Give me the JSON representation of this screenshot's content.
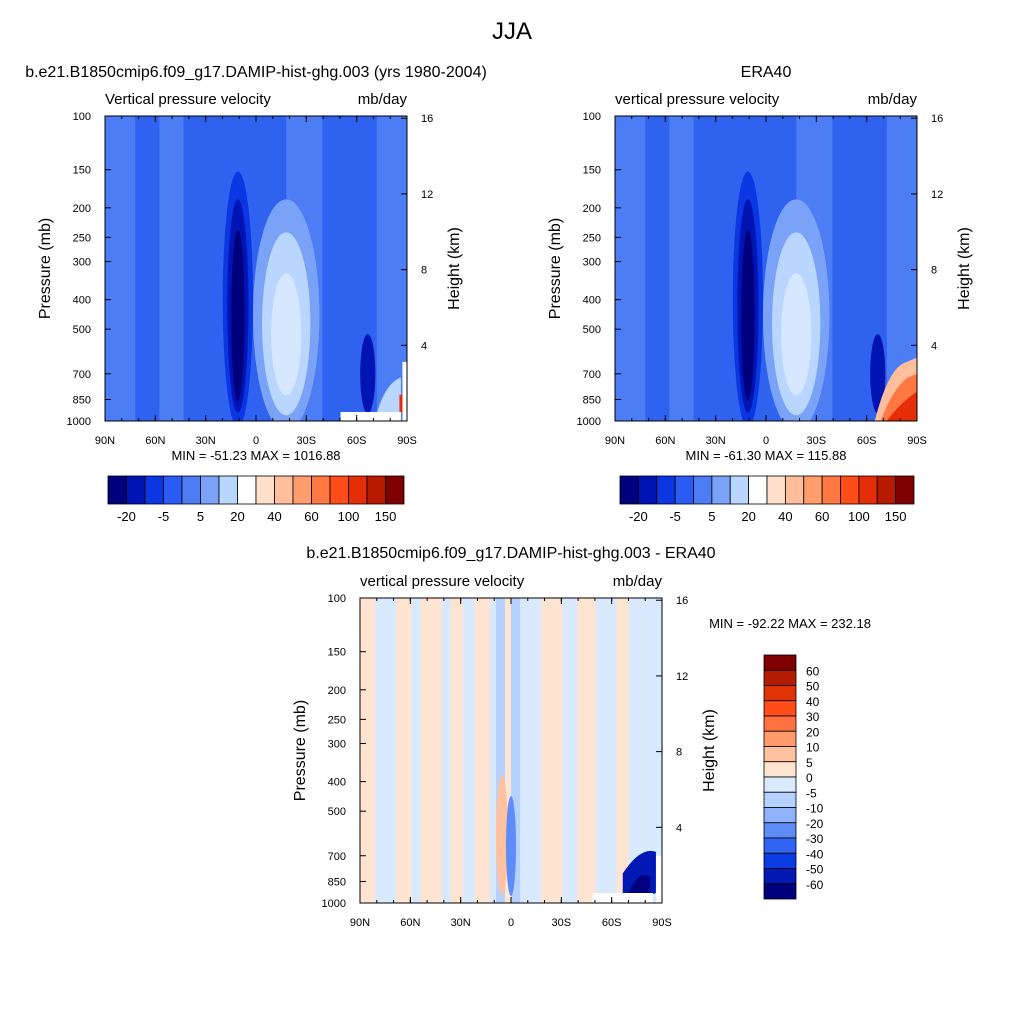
{
  "page_title": "JJA",
  "colors": {
    "background": "#ffffff",
    "blue_dark": "#00007f",
    "blue_mid": "#1c4fff",
    "blue_light": "#b9d6ff",
    "red_light": "#ffe0cc",
    "red_dark": "#7f0000"
  },
  "chart_data": [
    {
      "type": "heatmap",
      "variable": "vertical pressure velocity",
      "title": "b.e21.B1850cmip6.f09_g17.DAMIP-hist-ghg.003 (yrs 1980-2004)",
      "subtitle_left": "Vertical pressure velocity",
      "subtitle_right": "mb/day",
      "xlabel": "",
      "ylabel": "Pressure (mb)",
      "y2label": "Height (km)",
      "xticks": [
        "90N",
        "60N",
        "30N",
        "0",
        "30S",
        "60S",
        "90S"
      ],
      "yticks": [
        "100",
        "150",
        "200",
        "250",
        "300",
        "400",
        "500",
        "700",
        "850",
        "1000"
      ],
      "y2ticks": [
        "16",
        "12",
        "8",
        "4"
      ],
      "xlim": [
        "90N",
        "90S"
      ],
      "ylim": [
        1000,
        100
      ],
      "y_scale": "log",
      "stats": "MIN = -51.23  MAX = 1016.88",
      "colorbar": {
        "orientation": "horizontal",
        "labels": [
          "-20",
          "-5",
          "5",
          "20",
          "40",
          "60",
          "100",
          "150"
        ],
        "colors": [
          "#00007f",
          "#0014b4",
          "#0a36e3",
          "#2a5bf5",
          "#4c7df5",
          "#7aa3f7",
          "#b9d6ff",
          "#ffffff",
          "#ffe0cc",
          "#ffbe9c",
          "#ff9d6c",
          "#ff7743",
          "#ff4d1a",
          "#e52d08",
          "#b81a00",
          "#7f0000"
        ]
      }
    },
    {
      "type": "heatmap",
      "variable": "vertical pressure velocity",
      "title": "ERA40",
      "subtitle_left": "vertical pressure velocity",
      "subtitle_right": "mb/day",
      "xlabel": "",
      "ylabel": "Pressure (mb)",
      "y2label": "Height (km)",
      "xticks": [
        "90N",
        "60N",
        "30N",
        "0",
        "30S",
        "60S",
        "90S"
      ],
      "yticks": [
        "100",
        "150",
        "200",
        "250",
        "300",
        "400",
        "500",
        "700",
        "850",
        "1000"
      ],
      "y2ticks": [
        "16",
        "12",
        "8",
        "4"
      ],
      "xlim": [
        "90N",
        "90S"
      ],
      "ylim": [
        1000,
        100
      ],
      "y_scale": "log",
      "stats": "MIN = -61.30  MAX = 115.88",
      "colorbar": {
        "orientation": "horizontal",
        "labels": [
          "-20",
          "-5",
          "5",
          "20",
          "40",
          "60",
          "100",
          "150"
        ],
        "colors": [
          "#00007f",
          "#0014b4",
          "#0a36e3",
          "#2a5bf5",
          "#4c7df5",
          "#7aa3f7",
          "#b9d6ff",
          "#ffffff",
          "#ffe0cc",
          "#ffbe9c",
          "#ff9d6c",
          "#ff7743",
          "#ff4d1a",
          "#e52d08",
          "#b81a00",
          "#7f0000"
        ]
      }
    },
    {
      "type": "heatmap",
      "variable": "vertical pressure velocity",
      "title": "b.e21.B1850cmip6.f09_g17.DAMIP-hist-ghg.003 - ERA40",
      "subtitle_left": "vertical pressure velocity",
      "subtitle_right": "mb/day",
      "xlabel": "",
      "ylabel": "Pressure (mb)",
      "y2label": "Height (km)",
      "xticks": [
        "90N",
        "60N",
        "30N",
        "0",
        "30S",
        "60S",
        "90S"
      ],
      "yticks": [
        "100",
        "150",
        "200",
        "250",
        "300",
        "400",
        "500",
        "700",
        "850",
        "1000"
      ],
      "y2ticks": [
        "16",
        "12",
        "8",
        "4"
      ],
      "xlim": [
        "90N",
        "90S"
      ],
      "ylim": [
        1000,
        100
      ],
      "y_scale": "log",
      "stats": "MIN = -92.22  MAX = 232.18",
      "colorbar": {
        "orientation": "vertical",
        "labels": [
          "60",
          "50",
          "40",
          "30",
          "20",
          "10",
          "5",
          "0",
          "-5",
          "-10",
          "-20",
          "-30",
          "-40",
          "-50",
          "-60"
        ],
        "colors": [
          "#7f0000",
          "#b31c00",
          "#e13305",
          "#ff4d1a",
          "#ff7140",
          "#ff9a6b",
          "#ffc1a0",
          "#ffe4d2",
          "#d9eaff",
          "#b5d1ff",
          "#8eb3fa",
          "#5e8df7",
          "#3163f5",
          "#0a3ce3",
          "#0019b5",
          "#00007f"
        ]
      }
    }
  ]
}
